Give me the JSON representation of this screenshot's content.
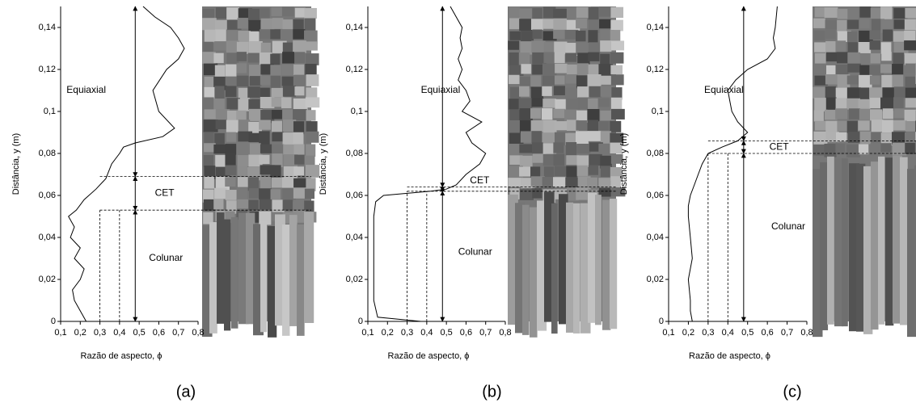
{
  "chart_data": [
    {
      "type": "line",
      "label": "(a)",
      "xlabel": "Razão de aspecto, ϕ",
      "ylabel": "Distância, y (m)",
      "annotations": [
        "Equiaxial",
        "CET",
        "Colunar"
      ],
      "x": [
        0.23,
        0.2,
        0.17,
        0.16,
        0.2,
        0.22,
        0.17,
        0.2,
        0.15,
        0.17,
        0.14,
        0.18,
        0.22,
        0.28,
        0.33,
        0.36,
        0.4,
        0.42,
        0.48,
        0.62,
        0.68,
        0.6,
        0.57,
        0.64,
        0.7,
        0.73,
        0.7,
        0.66,
        0.58,
        0.52
      ],
      "values": [
        0,
        0.005,
        0.01,
        0.015,
        0.02,
        0.025,
        0.03,
        0.035,
        0.04,
        0.045,
        0.05,
        0.053,
        0.058,
        0.063,
        0.068,
        0.075,
        0.08,
        0.083,
        0.085,
        0.088,
        0.092,
        0.1,
        0.11,
        0.12,
        0.125,
        0.13,
        0.135,
        0.14,
        0.145,
        0.15
      ],
      "vlines": [
        0.3,
        0.4
      ],
      "hlines": [
        0.053,
        0.069
      ],
      "color": "#000000",
      "xlim": [
        0.1,
        0.8
      ],
      "ylim": [
        0,
        0.15
      ],
      "xticks": [
        {
          "value": 0.1,
          "label": "0,1"
        },
        {
          "value": 0.2,
          "label": "0,2"
        },
        {
          "value": 0.3,
          "label": "0,3"
        },
        {
          "value": 0.4,
          "label": "0,4"
        },
        {
          "value": 0.5,
          "label": "0,5"
        },
        {
          "value": 0.6,
          "label": "0,6"
        },
        {
          "value": 0.7,
          "label": "0,7"
        },
        {
          "value": 0.8,
          "label": "0,8"
        }
      ],
      "yticks": [
        0,
        {
          "value": 0.02,
          "label": "0,02"
        },
        {
          "value": 0.04,
          "label": "0,04"
        },
        {
          "value": 0.06,
          "label": "0,06"
        },
        {
          "value": 0.08,
          "label": "0,08"
        },
        {
          "value": 0.1,
          "label": "0,1"
        },
        {
          "value": 0.12,
          "label": "0,12"
        },
        {
          "value": 0.14,
          "label": "0,14"
        }
      ]
    },
    {
      "type": "line",
      "label": "(b)",
      "xlabel": "Razão de aspecto, ϕ",
      "ylabel": "Distância, y (m)",
      "annotations": [
        "Equiaxial",
        "CET",
        "Colunar"
      ],
      "x": [
        0.37,
        0.15,
        0.13,
        0.13,
        0.13,
        0.14,
        0.18,
        0.42,
        0.5,
        0.55,
        0.6,
        0.67,
        0.7,
        0.63,
        0.6,
        0.68,
        0.58,
        0.62,
        0.6,
        0.56,
        0.58,
        0.56,
        0.58,
        0.57,
        0.58,
        0.55,
        0.52
      ],
      "values": [
        0,
        0.002,
        0.01,
        0.03,
        0.05,
        0.057,
        0.06,
        0.062,
        0.063,
        0.065,
        0.07,
        0.075,
        0.08,
        0.085,
        0.09,
        0.095,
        0.1,
        0.105,
        0.11,
        0.115,
        0.12,
        0.125,
        0.13,
        0.135,
        0.14,
        0.145,
        0.15
      ],
      "vlines": [
        0.3,
        0.4
      ],
      "hlines": [
        0.062,
        0.064
      ],
      "color": "#000000",
      "xlim": [
        0.1,
        0.8
      ],
      "ylim": [
        0,
        0.15
      ],
      "xticks": [
        {
          "value": 0.1,
          "label": "0,1"
        },
        {
          "value": 0.2,
          "label": "0,2"
        },
        {
          "value": 0.3,
          "label": "0,3"
        },
        {
          "value": 0.4,
          "label": "0,4"
        },
        {
          "value": 0.5,
          "label": "0,5"
        },
        {
          "value": 0.6,
          "label": "0,6"
        },
        {
          "value": 0.7,
          "label": "0,7"
        },
        {
          "value": 0.8,
          "label": "0,8"
        }
      ],
      "yticks": [
        0,
        {
          "value": 0.02,
          "label": "0,02"
        },
        {
          "value": 0.04,
          "label": "0,04"
        },
        {
          "value": 0.06,
          "label": "0,06"
        },
        {
          "value": 0.08,
          "label": "0,08"
        },
        {
          "value": 0.1,
          "label": "0,1"
        },
        {
          "value": 0.12,
          "label": "0,12"
        },
        {
          "value": 0.14,
          "label": "0,14"
        }
      ]
    },
    {
      "type": "line",
      "label": "(c)",
      "xlabel": "Razão de aspecto, ϕ",
      "ylabel": "Distância, y (m)",
      "annotations": [
        "Equiaxial",
        "CET",
        "Colunar"
      ],
      "x": [
        0.22,
        0.21,
        0.21,
        0.2,
        0.22,
        0.21,
        0.2,
        0.2,
        0.21,
        0.23,
        0.25,
        0.27,
        0.3,
        0.37,
        0.45,
        0.5,
        0.45,
        0.42,
        0.41,
        0.4,
        0.44,
        0.5,
        0.6,
        0.64,
        0.63,
        0.64,
        0.65
      ],
      "values": [
        0,
        0.005,
        0.01,
        0.02,
        0.03,
        0.04,
        0.05,
        0.055,
        0.06,
        0.065,
        0.07,
        0.075,
        0.08,
        0.083,
        0.086,
        0.09,
        0.095,
        0.1,
        0.105,
        0.11,
        0.115,
        0.12,
        0.125,
        0.13,
        0.135,
        0.14,
        0.15
      ],
      "vlines": [
        0.3,
        0.4
      ],
      "hlines": [
        0.08,
        0.086
      ],
      "color": "#000000",
      "xlim": [
        0.1,
        0.8
      ],
      "ylim": [
        0,
        0.15
      ],
      "xticks": [
        {
          "value": 0.1,
          "label": "0,1"
        },
        {
          "value": 0.2,
          "label": "0,2"
        },
        {
          "value": 0.3,
          "label": "0,3"
        },
        {
          "value": 0.4,
          "label": "0,4"
        },
        {
          "value": 0.5,
          "label": "0,5"
        },
        {
          "value": 0.6,
          "label": "0,6"
        },
        {
          "value": 0.7,
          "label": "0,7"
        },
        {
          "value": 0.8,
          "label": "0,8"
        }
      ],
      "yticks": [
        0,
        {
          "value": 0.02,
          "label": "0,02"
        },
        {
          "value": 0.04,
          "label": "0,04"
        },
        {
          "value": 0.06,
          "label": "0,06"
        },
        {
          "value": 0.08,
          "label": "0,08"
        },
        {
          "value": 0.1,
          "label": "0,1"
        },
        {
          "value": 0.12,
          "label": "0,12"
        },
        {
          "value": 0.14,
          "label": "0,14"
        }
      ]
    }
  ]
}
